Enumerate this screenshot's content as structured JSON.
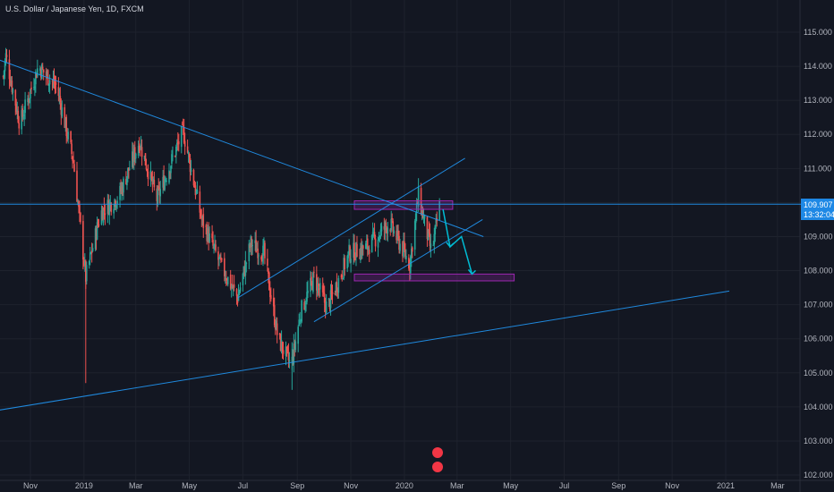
{
  "header": {
    "title": "U.S. Dollar / Japanese Yen, 1D, FXCM"
  },
  "price_badge": {
    "price": "109.907",
    "countdown": "13:32:04"
  },
  "chart_data": {
    "type": "candlestick",
    "title": "U.S. Dollar / Japanese Yen, 1D, FXCM",
    "ylim": [
      102.0,
      115.6
    ],
    "y_ticks": [
      "115.000",
      "114.000",
      "113.000",
      "112.000",
      "111.000",
      "110.000",
      "109.000",
      "108.000",
      "107.000",
      "106.000",
      "105.000",
      "104.000",
      "103.000",
      "102.000"
    ],
    "x_ticks": [
      "Nov",
      "2019",
      "Mar",
      "May",
      "Jul",
      "Sep",
      "Nov",
      "2020",
      "Mar",
      "May",
      "Jul",
      "Sep",
      "Nov",
      "2021",
      "Mar"
    ],
    "grid": true,
    "colors": {
      "up": "#26a69a",
      "down": "#ef5350",
      "trendline": "#2196f3",
      "zone": "#9c27b0",
      "arrow": "#00bcd4",
      "background": "#131722"
    },
    "key_points": [
      {
        "date": "2018-10-01",
        "close": 113.7
      },
      {
        "date": "2018-10-04",
        "close": 114.3
      },
      {
        "date": "2018-10-20",
        "close": 112.3
      },
      {
        "date": "2018-11-10",
        "close": 114.0
      },
      {
        "date": "2018-12-01",
        "close": 113.4
      },
      {
        "date": "2018-12-20",
        "close": 111.2
      },
      {
        "date": "2019-01-03",
        "close": 107.8
      },
      {
        "date": "2019-01-20",
        "close": 109.7
      },
      {
        "date": "2019-02-10",
        "close": 110.2
      },
      {
        "date": "2019-03-05",
        "close": 111.8
      },
      {
        "date": "2019-03-25",
        "close": 110.1
      },
      {
        "date": "2019-04-24",
        "close": 112.1
      },
      {
        "date": "2019-05-15",
        "close": 109.5
      },
      {
        "date": "2019-06-05",
        "close": 108.2
      },
      {
        "date": "2019-06-25",
        "close": 107.2
      },
      {
        "date": "2019-07-10",
        "close": 108.8
      },
      {
        "date": "2019-07-25",
        "close": 108.5
      },
      {
        "date": "2019-08-10",
        "close": 106.0
      },
      {
        "date": "2019-08-25",
        "close": 105.2
      },
      {
        "date": "2019-09-05",
        "close": 106.8
      },
      {
        "date": "2019-09-20",
        "close": 107.8
      },
      {
        "date": "2019-10-05",
        "close": 106.9
      },
      {
        "date": "2019-10-30",
        "close": 108.5
      },
      {
        "date": "2019-11-20",
        "close": 108.7
      },
      {
        "date": "2019-12-15",
        "close": 109.4
      },
      {
        "date": "2020-01-07",
        "close": 108.2
      },
      {
        "date": "2020-01-17",
        "close": 110.2
      },
      {
        "date": "2020-02-01",
        "close": 108.5
      },
      {
        "date": "2020-02-10",
        "close": 109.9
      }
    ],
    "trendlines": [
      {
        "name": "descending-resistance",
        "from": {
          "date": "2018-09-25",
          "price": 114.2
        },
        "to": {
          "date": "2020-03-31",
          "price": 109.0
        }
      },
      {
        "name": "long-term-support",
        "from": {
          "date": "2018-09-25",
          "price": 103.9
        },
        "to": {
          "date": "2021-01-05",
          "price": 107.4
        }
      },
      {
        "name": "channel-upper",
        "from": {
          "date": "2019-06-25",
          "price": 107.2
        },
        "to": {
          "date": "2020-03-10",
          "price": 111.3
        }
      },
      {
        "name": "channel-lower",
        "from": {
          "date": "2019-09-20",
          "price": 106.5
        },
        "to": {
          "date": "2020-03-30",
          "price": 109.5
        }
      },
      {
        "name": "horizontal-level",
        "from": {
          "date": "2018-09-25",
          "price": 109.95
        },
        "to": {
          "date": "2021-03-31",
          "price": 109.95
        }
      }
    ],
    "zones": [
      {
        "name": "resistance-zone",
        "from": "2019-11-05",
        "to": "2020-02-25",
        "low": 109.8,
        "high": 110.05
      },
      {
        "name": "support-zone",
        "from": "2019-11-05",
        "to": "2020-05-05",
        "low": 107.7,
        "high": 107.9
      }
    ]
  }
}
